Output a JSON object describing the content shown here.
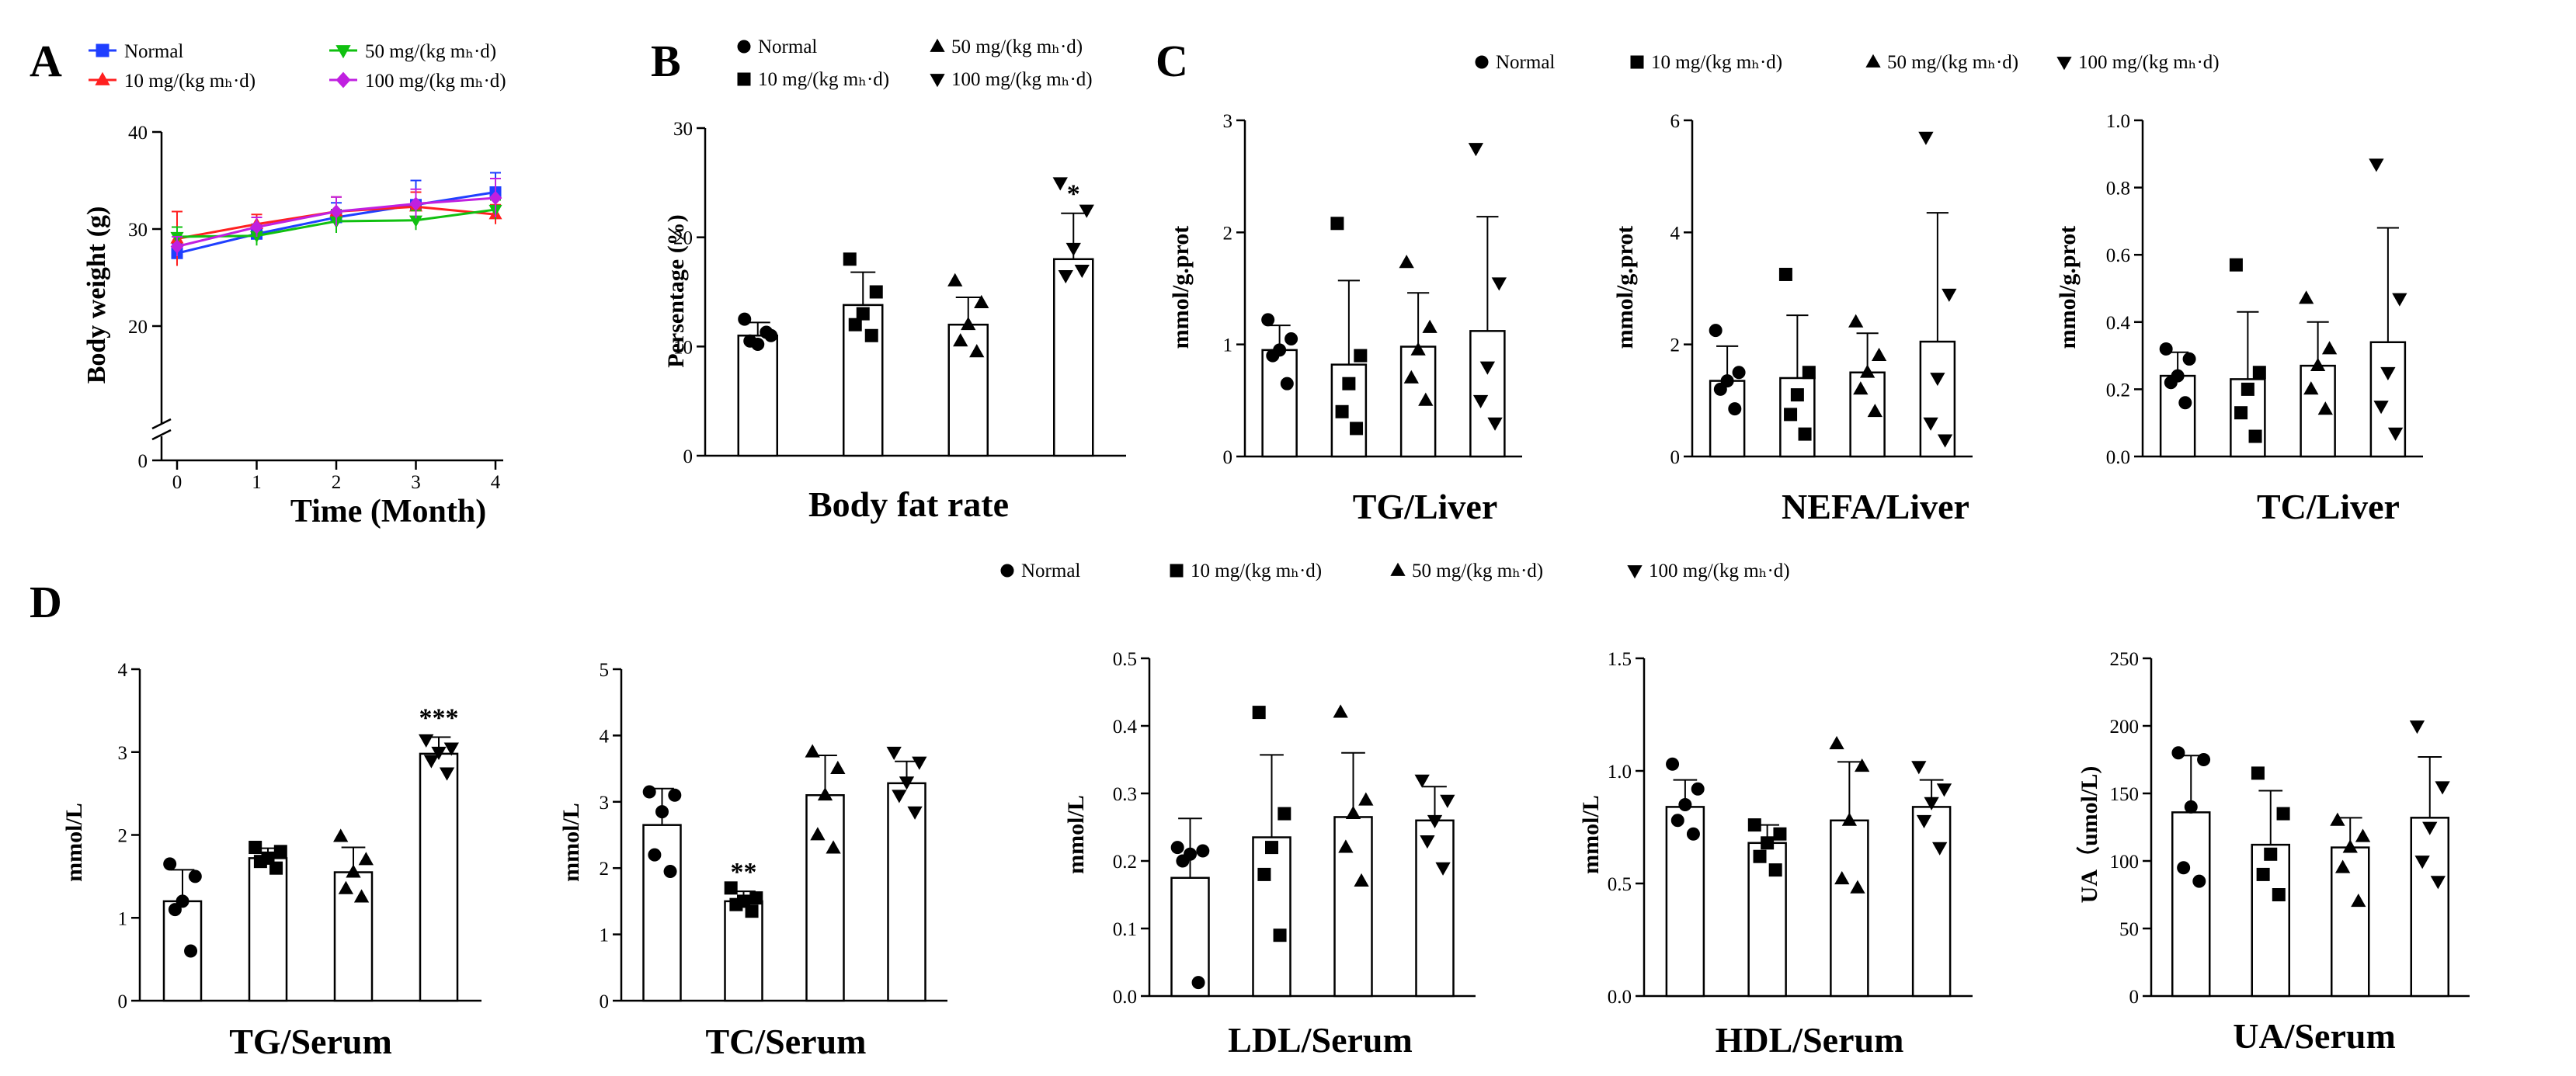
{
  "figure": {
    "legend_groups": [
      "Normal",
      "10 mg/(kg mₕ·d)",
      "50 mg/(kg mₕ·d)",
      "100 mg/(kg mₕ·d)"
    ]
  },
  "chart_data": [
    {
      "id": "A",
      "type": "line",
      "panel_letter": "A",
      "xlabel": "Time (Month)",
      "ylabel": "Body weight (g)",
      "x": [
        0,
        1,
        2,
        3,
        4
      ],
      "xlim": [
        0,
        4
      ],
      "ylim": [
        0,
        40
      ],
      "axis_break": true,
      "yticks": [
        0,
        20,
        30,
        40
      ],
      "legend_position": "top",
      "series": [
        {
          "name": "Normal",
          "marker": "square",
          "color": "#1f3fff",
          "values": [
            27.5,
            29.5,
            31.2,
            32.5,
            33.8
          ],
          "errors": [
            1.0,
            1.0,
            1.5,
            2.5,
            2.0
          ]
        },
        {
          "name": "10 mg/(kg mₕ·d)",
          "marker": "triangle-up",
          "color": "#ff2020",
          "values": [
            29.0,
            30.5,
            31.8,
            32.3,
            31.5
          ],
          "errors": [
            2.8,
            1.0,
            1.5,
            1.5,
            1.0
          ]
        },
        {
          "name": "50 mg/(kg mₕ·d)",
          "marker": "triangle-down",
          "color": "#10c010",
          "values": [
            29.2,
            29.3,
            30.8,
            30.9,
            32.0
          ],
          "errors": [
            1.0,
            1.0,
            1.2,
            1.0,
            1.0
          ]
        },
        {
          "name": "100 mg/(kg mₕ·d)",
          "marker": "diamond",
          "color": "#c020e0",
          "values": [
            28.2,
            30.2,
            31.8,
            32.6,
            33.2
          ],
          "errors": [
            1.0,
            1.0,
            1.5,
            1.5,
            2.0
          ]
        }
      ]
    },
    {
      "id": "B",
      "type": "bar",
      "panel_letter": "B",
      "xlabel": "Body fat rate",
      "ylabel": "Persentage (%)",
      "ylim": [
        0,
        30
      ],
      "yticks": [
        0,
        10,
        20,
        30
      ],
      "legend_position": "top",
      "bars": [
        {
          "mean": 11.0,
          "sd": 1.2,
          "points": [
            12.5,
            11.0,
            10.2,
            10.5,
            11.3
          ],
          "sig": ""
        },
        {
          "mean": 13.8,
          "sd": 3.0,
          "points": [
            18.0,
            15.0,
            13.0,
            12.0,
            11.0
          ],
          "sig": ""
        },
        {
          "mean": 12.0,
          "sd": 2.5,
          "points": [
            16.0,
            14.0,
            12.0,
            10.5,
            9.5
          ],
          "sig": ""
        },
        {
          "mean": 18.0,
          "sd": 4.2,
          "points": [
            25.0,
            22.5,
            19.0,
            16.5,
            17.0
          ],
          "sig": "*"
        }
      ]
    },
    {
      "id": "C1",
      "type": "bar",
      "panel_letter": "C",
      "xlabel": "TG/Liver",
      "ylabel": "mmol/g.prot",
      "ylim": [
        0,
        3
      ],
      "yticks": [
        0,
        1,
        2,
        3
      ],
      "ytick_labels": [
        "0",
        "1",
        "2",
        "3"
      ],
      "legend_position": "top",
      "bars": [
        {
          "mean": 0.95,
          "sd": 0.22,
          "points": [
            1.22,
            1.05,
            0.95,
            0.9,
            0.65
          ],
          "sig": ""
        },
        {
          "mean": 0.82,
          "sd": 0.75,
          "points": [
            2.08,
            0.9,
            0.65,
            0.4,
            0.25
          ],
          "sig": ""
        },
        {
          "mean": 0.98,
          "sd": 0.48,
          "points": [
            1.73,
            1.15,
            0.95,
            0.7,
            0.5
          ],
          "sig": ""
        },
        {
          "mean": 1.12,
          "sd": 1.02,
          "points": [
            2.75,
            1.55,
            0.8,
            0.5,
            0.3
          ],
          "sig": ""
        }
      ]
    },
    {
      "id": "C2",
      "type": "bar",
      "panel_letter": "",
      "xlabel": "NEFA/Liver",
      "ylabel": "mmol/g.prot",
      "ylim": [
        0,
        6
      ],
      "yticks": [
        0,
        2,
        4,
        6
      ],
      "ytick_labels": [
        "0",
        "2",
        "4",
        "6"
      ],
      "bars": [
        {
          "mean": 1.35,
          "sd": 0.62,
          "points": [
            2.25,
            1.5,
            1.35,
            1.2,
            0.85
          ],
          "sig": ""
        },
        {
          "mean": 1.4,
          "sd": 1.12,
          "points": [
            3.25,
            1.5,
            1.1,
            0.75,
            0.4
          ],
          "sig": ""
        },
        {
          "mean": 1.5,
          "sd": 0.7,
          "points": [
            2.4,
            1.8,
            1.5,
            1.2,
            0.8
          ],
          "sig": ""
        },
        {
          "mean": 2.05,
          "sd": 2.3,
          "points": [
            5.7,
            2.9,
            1.4,
            0.6,
            0.3
          ],
          "sig": ""
        }
      ]
    },
    {
      "id": "C3",
      "type": "bar",
      "panel_letter": "",
      "xlabel": "TC/Liver",
      "ylabel": "mmol/g.prot",
      "ylim": [
        0,
        1
      ],
      "yticks": [
        0,
        0.2,
        0.4,
        0.6,
        0.8,
        1.0
      ],
      "ytick_labels": [
        "0.0",
        "0.2",
        "0.4",
        "0.6",
        "0.8",
        "1.0"
      ],
      "bars": [
        {
          "mean": 0.24,
          "sd": 0.07,
          "points": [
            0.32,
            0.29,
            0.24,
            0.22,
            0.16
          ],
          "sig": ""
        },
        {
          "mean": 0.23,
          "sd": 0.2,
          "points": [
            0.57,
            0.25,
            0.2,
            0.13,
            0.06
          ],
          "sig": ""
        },
        {
          "mean": 0.27,
          "sd": 0.13,
          "points": [
            0.47,
            0.32,
            0.27,
            0.2,
            0.14
          ],
          "sig": ""
        },
        {
          "mean": 0.34,
          "sd": 0.34,
          "points": [
            0.87,
            0.47,
            0.25,
            0.15,
            0.07
          ],
          "sig": ""
        }
      ]
    },
    {
      "id": "D1",
      "type": "bar",
      "panel_letter": "D",
      "xlabel": "TG/Serum",
      "ylabel": "mmol/L",
      "ylim": [
        0,
        4
      ],
      "yticks": [
        0,
        1,
        2,
        3,
        4
      ],
      "ytick_labels": [
        "0",
        "1",
        "2",
        "3",
        "4"
      ],
      "bars": [
        {
          "mean": 1.2,
          "sd": 0.38,
          "points": [
            1.65,
            1.5,
            1.2,
            1.1,
            0.6
          ],
          "sig": ""
        },
        {
          "mean": 1.72,
          "sd": 0.12,
          "points": [
            1.85,
            1.8,
            1.72,
            1.68,
            1.6
          ],
          "sig": ""
        },
        {
          "mean": 1.55,
          "sd": 0.3,
          "points": [
            1.98,
            1.7,
            1.55,
            1.35,
            1.25
          ],
          "sig": ""
        },
        {
          "mean": 2.98,
          "sd": 0.2,
          "points": [
            3.15,
            3.05,
            3.0,
            2.9,
            2.75
          ],
          "sig": "***"
        }
      ]
    },
    {
      "id": "D2",
      "type": "bar",
      "panel_letter": "",
      "xlabel": "TC/Serum",
      "ylabel": "mmol/L",
      "ylim": [
        0,
        5
      ],
      "yticks": [
        0,
        1,
        2,
        3,
        4,
        5
      ],
      "ytick_labels": [
        "0",
        "1",
        "2",
        "3",
        "4",
        "5"
      ],
      "legend_position": "top",
      "bars": [
        {
          "mean": 2.65,
          "sd": 0.55,
          "points": [
            3.15,
            3.1,
            2.85,
            2.2,
            1.95
          ],
          "sig": ""
        },
        {
          "mean": 1.5,
          "sd": 0.15,
          "points": [
            1.7,
            1.55,
            1.5,
            1.45,
            1.35
          ],
          "sig": "**"
        },
        {
          "mean": 3.1,
          "sd": 0.6,
          "points": [
            3.75,
            3.5,
            3.1,
            2.5,
            2.3
          ],
          "sig": ""
        },
        {
          "mean": 3.28,
          "sd": 0.33,
          "points": [
            3.75,
            3.6,
            3.3,
            3.1,
            2.85
          ],
          "sig": ""
        }
      ]
    },
    {
      "id": "D3",
      "type": "bar",
      "panel_letter": "",
      "xlabel": "LDL/Serum",
      "ylabel": "mmol/L",
      "ylim": [
        0,
        0.5
      ],
      "yticks": [
        0,
        0.1,
        0.2,
        0.3,
        0.4,
        0.5
      ],
      "ytick_labels": [
        "0.0",
        "0.1",
        "0.2",
        "0.3",
        "0.4",
        "0.5"
      ],
      "bars": [
        {
          "mean": 0.175,
          "sd": 0.088,
          "points": [
            0.22,
            0.215,
            0.21,
            0.2,
            0.02
          ],
          "sig": ""
        },
        {
          "mean": 0.235,
          "sd": 0.122,
          "points": [
            0.42,
            0.27,
            0.22,
            0.18,
            0.09
          ],
          "sig": ""
        },
        {
          "mean": 0.265,
          "sd": 0.095,
          "points": [
            0.42,
            0.29,
            0.27,
            0.22,
            0.17
          ],
          "sig": ""
        },
        {
          "mean": 0.26,
          "sd": 0.05,
          "points": [
            0.32,
            0.29,
            0.26,
            0.23,
            0.19
          ],
          "sig": ""
        }
      ]
    },
    {
      "id": "D4",
      "type": "bar",
      "panel_letter": "",
      "xlabel": "HDL/Serum",
      "ylabel": "mmol/L",
      "ylim": [
        0,
        1.5
      ],
      "yticks": [
        0,
        0.5,
        1.0,
        1.5
      ],
      "ytick_labels": [
        "0.0",
        "0.5",
        "1.0",
        "1.5"
      ],
      "bars": [
        {
          "mean": 0.84,
          "sd": 0.12,
          "points": [
            1.03,
            0.92,
            0.85,
            0.78,
            0.72
          ],
          "sig": ""
        },
        {
          "mean": 0.68,
          "sd": 0.08,
          "points": [
            0.76,
            0.72,
            0.68,
            0.62,
            0.56
          ],
          "sig": ""
        },
        {
          "mean": 0.78,
          "sd": 0.26,
          "points": [
            1.12,
            1.02,
            0.78,
            0.52,
            0.48
          ],
          "sig": ""
        },
        {
          "mean": 0.84,
          "sd": 0.12,
          "points": [
            1.02,
            0.92,
            0.86,
            0.78,
            0.66
          ],
          "sig": ""
        }
      ]
    },
    {
      "id": "D5",
      "type": "bar",
      "panel_letter": "",
      "xlabel": "UA/Serum",
      "ylabel": "UA（umol/L)",
      "ylim": [
        0,
        250
      ],
      "yticks": [
        0,
        50,
        100,
        150,
        200,
        250
      ],
      "ytick_labels": [
        "0",
        "50",
        "100",
        "150",
        "200",
        "250"
      ],
      "bars": [
        {
          "mean": 136,
          "sd": 42,
          "points": [
            180,
            175,
            140,
            95,
            85
          ],
          "sig": ""
        },
        {
          "mean": 112,
          "sd": 40,
          "points": [
            165,
            135,
            105,
            90,
            75
          ],
          "sig": ""
        },
        {
          "mean": 110,
          "sd": 22,
          "points": [
            130,
            118,
            110,
            95,
            70
          ],
          "sig": ""
        },
        {
          "mean": 132,
          "sd": 45,
          "points": [
            200,
            155,
            125,
            100,
            85
          ],
          "sig": ""
        }
      ]
    }
  ]
}
